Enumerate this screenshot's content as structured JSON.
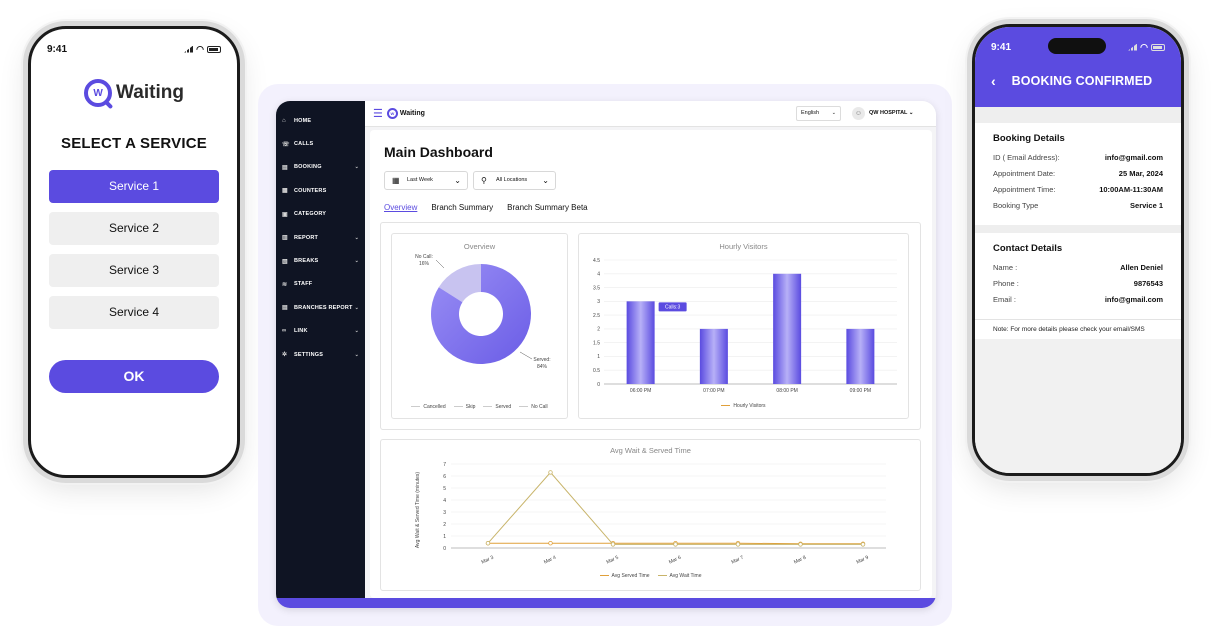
{
  "left_phone": {
    "time": "9:41",
    "logo_badge": "W",
    "logo_text": "Waiting",
    "title": "SELECT A SERVICE",
    "services": [
      "Service 1",
      "Service 2",
      "Service 3",
      "Service 4"
    ],
    "selected_index": 0,
    "ok_label": "OK",
    "accent": "#5b4be0"
  },
  "dashboard": {
    "logo_text": "Waiting",
    "language": "English",
    "user": "QW HOSPITAL",
    "sidebar": [
      {
        "label": "HOME",
        "icon": "home-icon",
        "glyph": "⌂",
        "has_chevron": false
      },
      {
        "label": "CALLS",
        "icon": "phone-icon",
        "glyph": "☏",
        "has_chevron": false
      },
      {
        "label": "BOOKING",
        "icon": "booking-icon",
        "glyph": "▤",
        "has_chevron": true
      },
      {
        "label": "COUNTERS",
        "icon": "counter-icon",
        "glyph": "▦",
        "has_chevron": false
      },
      {
        "label": "CATEGORY",
        "icon": "category-icon",
        "glyph": "▣",
        "has_chevron": false
      },
      {
        "label": "REPORT",
        "icon": "report-icon",
        "glyph": "▥",
        "has_chevron": true
      },
      {
        "label": "BREAKS",
        "icon": "breaks-icon",
        "glyph": "▧",
        "has_chevron": true
      },
      {
        "label": "STAFF",
        "icon": "staff-icon",
        "glyph": "≋",
        "has_chevron": false
      },
      {
        "label": "BRANCHES REPORT",
        "icon": "branches-icon",
        "glyph": "▤",
        "has_chevron": true
      },
      {
        "label": "LINK",
        "icon": "link-icon",
        "glyph": "∞",
        "has_chevron": true
      },
      {
        "label": "SETTINGS",
        "icon": "settings-icon",
        "glyph": "✲",
        "has_chevron": true
      }
    ],
    "title": "Main Dashboard",
    "filter_date": "Last Week",
    "filter_location": "All Locations",
    "tabs": [
      "Overview",
      "Branch Summary",
      "Branch Summary Beta"
    ],
    "active_tab": 0
  },
  "chart_data": [
    {
      "type": "pie",
      "title": "Overview",
      "categories": [
        "Cancelled",
        "Skip",
        "Served",
        "No Call"
      ],
      "values": [
        0,
        0,
        84,
        16
      ],
      "slice_labels": {
        "no_call": "No Call:\n16%",
        "served": "Served:\n84%"
      },
      "colors": [
        "#cccccc",
        "#cccccc",
        "#8a7ff0",
        "#c8c3f0"
      ]
    },
    {
      "type": "bar",
      "title": "Hourly Visitors",
      "categories": [
        "06:00 PM",
        "07:00 PM",
        "08:00 PM",
        "09:00 PM"
      ],
      "series": [
        {
          "name": "Hourly Visitors",
          "values": [
            3,
            2,
            4,
            2
          ]
        }
      ],
      "ylim": [
        0,
        4.5
      ],
      "yticks": [
        "0",
        "0.5",
        "1",
        "1.5",
        "2",
        "2.5",
        "3",
        "3.5",
        "4",
        "4.5"
      ],
      "tooltip": "Calls:3",
      "legend_color": "#e0a03a"
    },
    {
      "type": "line",
      "title": "Avg Wait & Served Time",
      "ylabel": "Avg Wait & Served Time (minutes)",
      "categories": [
        "Mar 3",
        "Mar 4",
        "Mar 5",
        "Mar 6",
        "Mar 7",
        "Mar 8",
        "Mar 9"
      ],
      "series": [
        {
          "name": "Avg Served Time",
          "values": [
            0.4,
            0.4,
            0.4,
            0.4,
            0.4,
            0.35,
            0.35
          ],
          "color": "#e0a03a"
        },
        {
          "name": "Avg Wait Time",
          "values": [
            0.4,
            6.3,
            0.3,
            0.3,
            0.3,
            0.3,
            0.3
          ],
          "color": "#c8b46a"
        }
      ],
      "ylim": [
        0,
        7
      ],
      "yticks": [
        "0",
        "1",
        "2",
        "3",
        "4",
        "5",
        "6",
        "7"
      ]
    }
  ],
  "right_phone": {
    "time": "9:41",
    "title": "BOOKING CONFIRMED",
    "booking_heading": "Booking Details",
    "booking": [
      {
        "k": "ID ( Email Address):",
        "v": "info@gmail.com"
      },
      {
        "k": "Appointment Date:",
        "v": "25 Mar, 2024"
      },
      {
        "k": "Appointment Time:",
        "v": "10:00AM-11:30AM"
      },
      {
        "k": "Booking Type",
        "v": "Service 1"
      }
    ],
    "contact_heading": "Contact Details",
    "contact": [
      {
        "k": "Name :",
        "v": "Allen Deniel"
      },
      {
        "k": "Phone :",
        "v": "9876543"
      },
      {
        "k": "Email :",
        "v": "info@gmail.com"
      }
    ],
    "note": "Note: For more details please check your email/SMS"
  }
}
